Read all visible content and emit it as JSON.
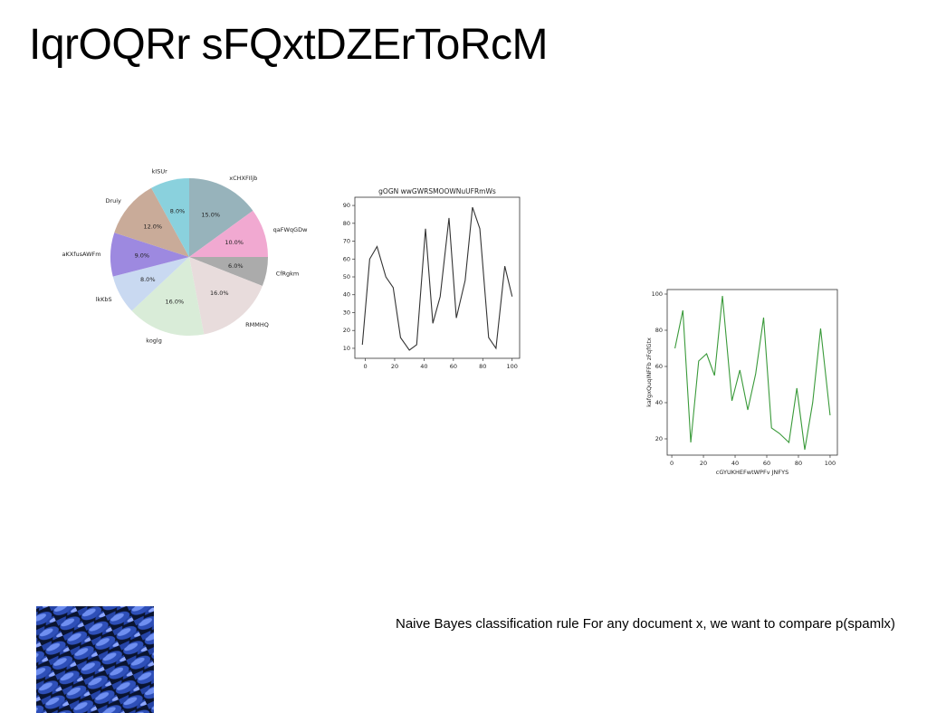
{
  "title": "IqrOQRr sFQxtDZErToRcM",
  "caption": "Naive Bayes classification rule For any document x, we want to compare p(spamlx)",
  "chart_data": [
    {
      "type": "pie",
      "categories": [
        "xCHXFIljb",
        "qaFWqGDw",
        "CfRgkm",
        "RMMHQ",
        "koglg",
        "lkKbS",
        "aKXfusAWFm",
        "Druiy",
        "kISUr"
      ],
      "values": [
        15,
        10,
        6,
        16,
        16,
        8,
        9,
        12,
        8
      ],
      "value_labels": [
        "15.0%",
        "10.0%",
        "6.0%",
        "16.0%",
        "16.0%",
        "8.0%",
        "9.0%",
        "12.0%",
        "8.0%"
      ],
      "colors": [
        "#97b3bb",
        "#f1a9d1",
        "#ababab",
        "#e8dcdc",
        "#d9ecd8",
        "#c9d9f1",
        "#9d89e0",
        "#c9ab99",
        "#8ad1dd"
      ]
    },
    {
      "type": "line",
      "title": "gOGN wwGWRSMOOWNuUFRmWs",
      "x": [
        -2,
        3,
        8,
        14,
        19,
        24,
        30,
        35,
        41,
        46,
        51,
        57,
        62,
        68,
        73,
        78,
        84,
        89,
        95,
        100
      ],
      "values": [
        12,
        60,
        67,
        50,
        44,
        16,
        9,
        12,
        77,
        24,
        39,
        83,
        27,
        48,
        89,
        77,
        16,
        10,
        56,
        39
      ],
      "color": "#333333",
      "xlim": [
        -7.1,
        105.1
      ],
      "ylim": [
        4.4,
        94.6
      ],
      "xticks": [
        0,
        20,
        40,
        60,
        80,
        100
      ],
      "yticks": [
        10,
        20,
        30,
        40,
        50,
        60,
        70,
        80,
        90
      ]
    },
    {
      "type": "line",
      "xlabel": "cGYUKHEFwtWPFv JNFYS",
      "ylabel": "kafgxQuqINFFb zFqfGtx",
      "x": [
        2,
        7,
        12,
        17,
        22,
        27,
        32,
        38,
        43,
        48,
        53,
        58,
        63,
        68,
        74,
        79,
        84,
        89,
        94,
        100
      ],
      "values": [
        70,
        91,
        18,
        63,
        67,
        55,
        99,
        41,
        58,
        36,
        56,
        87,
        26,
        23,
        18,
        48,
        14,
        40,
        81,
        33
      ],
      "color": "#3a9a3a",
      "xlim": [
        -2.9,
        104.6
      ],
      "ylim": [
        11,
        102.5
      ],
      "xticks": [
        0,
        20,
        40,
        60,
        80,
        100
      ],
      "yticks": [
        20,
        40,
        60,
        80,
        100
      ]
    }
  ]
}
